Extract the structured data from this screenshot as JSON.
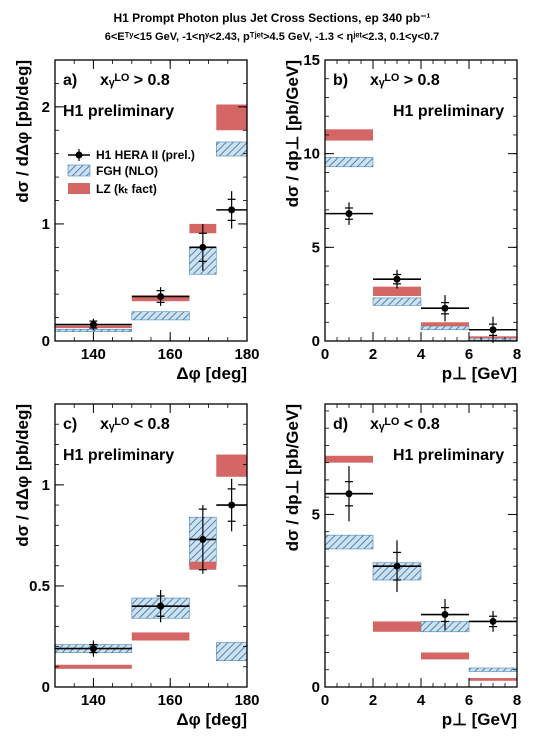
{
  "header": {
    "line1": "H1 Prompt Photon plus Jet Cross Sections, ep 340 pb⁻¹",
    "line2": "6<Eᵀʸ<15 GeV, -1<ηʸ<2.43, pᵀʲᵉᵗ>4.5 GeV, -1.3 < ηʲᵉᵗ<2.3, 0.1<y<0.7"
  },
  "colors": {
    "data": "#000000",
    "fgh": "#4a86b4",
    "fgh_fill": "#cfe1ee",
    "lz": "#d46666"
  },
  "legend": {
    "data": "H1 HERA II (prel.)",
    "fgh": "FGH (NLO)",
    "lz": "LZ (kₜ fact)"
  },
  "chart_data": [
    {
      "type": "scatter",
      "panel": "a)",
      "cut": "xᵧᴸᴼ > 0.8",
      "preliminary": "H1 preliminary",
      "xlabel": "Δφ [deg]",
      "ylabel": "dσ / dΔφ [pb/deg]",
      "xlim": [
        130,
        180
      ],
      "ylim": [
        0,
        2.4
      ],
      "xticks": [
        "140",
        "160",
        "180"
      ],
      "yticks": [
        "0",
        "1",
        "2"
      ],
      "bins": [
        [
          130,
          150
        ],
        [
          150,
          165
        ],
        [
          165,
          172
        ],
        [
          172,
          180
        ]
      ],
      "series": [
        {
          "name": "H1 HERA II (prel.)",
          "x": [
            140,
            157.5,
            168.5,
            176
          ],
          "y": [
            0.14,
            0.38,
            0.8,
            1.12
          ],
          "err_stat": [
            0.03,
            0.05,
            0.12,
            0.09
          ],
          "err_tot": [
            0.05,
            0.08,
            0.2,
            0.16
          ]
        },
        {
          "name": "FGH (NLO)",
          "low": [
            0.08,
            0.18,
            0.57,
            1.58
          ],
          "high": [
            0.1,
            0.25,
            0.8,
            1.7
          ]
        },
        {
          "name": "LZ (kₜ fact)",
          "low": [
            0.11,
            0.34,
            0.92,
            1.8
          ],
          "high": [
            0.13,
            0.39,
            1.0,
            2.02
          ]
        }
      ]
    },
    {
      "type": "scatter",
      "panel": "b)",
      "cut": "xᵧᴸᴼ > 0.8",
      "preliminary": "H1 preliminary",
      "xlabel": "p⊥ [GeV]",
      "ylabel": "dσ / dp⊥ [pb/GeV]",
      "xlim": [
        0,
        8
      ],
      "ylim": [
        0,
        15
      ],
      "xticks": [
        "0",
        "2",
        "4",
        "6",
        "8"
      ],
      "yticks": [
        "0",
        "5",
        "10",
        "15"
      ],
      "bins": [
        [
          0,
          2
        ],
        [
          2,
          4
        ],
        [
          4,
          6
        ],
        [
          6,
          8
        ]
      ],
      "series": [
        {
          "name": "H1 HERA II (prel.)",
          "x": [
            1,
            3,
            5,
            7
          ],
          "y": [
            6.8,
            3.3,
            1.75,
            0.6
          ],
          "err_stat": [
            0.3,
            0.25,
            0.3,
            0.3
          ],
          "err_tot": [
            0.6,
            0.5,
            0.7,
            0.7
          ]
        },
        {
          "name": "FGH (NLO)",
          "low": [
            9.3,
            1.9,
            0.6,
            0.05
          ],
          "high": [
            9.8,
            2.3,
            0.8,
            0.15
          ]
        },
        {
          "name": "LZ (kₜ fact)",
          "low": [
            10.7,
            2.4,
            0.8,
            0.15
          ],
          "high": [
            11.3,
            2.9,
            1.0,
            0.25
          ]
        }
      ]
    },
    {
      "type": "scatter",
      "panel": "c)",
      "cut": "xᵧᴸᴼ < 0.8",
      "preliminary": "H1 preliminary",
      "xlabel": "Δφ [deg]",
      "ylabel": "dσ / dΔφ [pb/deg]",
      "xlim": [
        130,
        180
      ],
      "ylim": [
        0,
        1.4
      ],
      "xticks": [
        "140",
        "160",
        "180"
      ],
      "yticks": [
        "0",
        "0.5",
        "1"
      ],
      "bins": [
        [
          130,
          150
        ],
        [
          150,
          165
        ],
        [
          165,
          172
        ],
        [
          172,
          180
        ]
      ],
      "series": [
        {
          "name": "H1 HERA II (prel.)",
          "x": [
            140,
            157.5,
            168.5,
            176
          ],
          "y": [
            0.19,
            0.4,
            0.73,
            0.9
          ],
          "err_stat": [
            0.02,
            0.05,
            0.15,
            0.08
          ],
          "err_tot": [
            0.04,
            0.08,
            0.17,
            0.13
          ]
        },
        {
          "name": "FGH (NLO)",
          "low": [
            0.17,
            0.34,
            0.6,
            0.13
          ],
          "high": [
            0.21,
            0.44,
            0.84,
            0.22
          ]
        },
        {
          "name": "LZ (kₜ fact)",
          "low": [
            0.09,
            0.23,
            0.58,
            1.04
          ],
          "high": [
            0.11,
            0.27,
            0.62,
            1.15
          ]
        }
      ]
    },
    {
      "type": "scatter",
      "panel": "d)",
      "cut": "xᵧᴸᴼ < 0.8",
      "preliminary": "H1 preliminary",
      "xlabel": "p⊥ [GeV]",
      "ylabel": "dσ / dp⊥ [pb/GeV]",
      "xlim": [
        0,
        8
      ],
      "ylim": [
        0,
        8.2
      ],
      "xticks": [
        "0",
        "2",
        "4",
        "6",
        "8"
      ],
      "yticks": [
        "0",
        "5"
      ],
      "bins": [
        [
          0,
          2
        ],
        [
          2,
          4
        ],
        [
          4,
          6
        ],
        [
          6,
          8
        ]
      ],
      "series": [
        {
          "name": "H1 HERA II (prel.)",
          "x": [
            1,
            3,
            5,
            7
          ],
          "y": [
            5.6,
            3.5,
            2.1,
            1.9
          ],
          "err_stat": [
            0.35,
            0.4,
            0.2,
            0.15
          ],
          "err_tot": [
            0.8,
            0.75,
            0.45,
            0.3
          ]
        },
        {
          "name": "FGH (NLO)",
          "low": [
            4.0,
            3.1,
            1.6,
            0.45
          ],
          "high": [
            4.4,
            3.6,
            1.9,
            0.55
          ]
        },
        {
          "name": "LZ (kₜ fact)",
          "low": [
            6.5,
            1.6,
            0.8,
            0.18
          ],
          "high": [
            6.7,
            1.9,
            1.0,
            0.26
          ]
        }
      ]
    }
  ]
}
